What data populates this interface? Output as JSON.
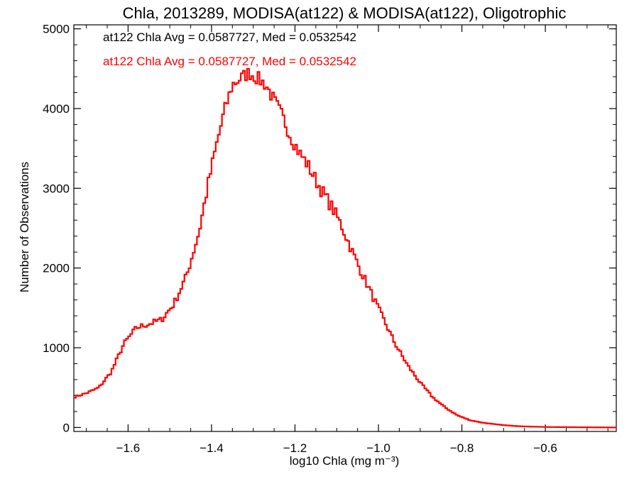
{
  "chart_data": {
    "type": "line",
    "step": true,
    "title": "Chla, 2013289, MODISA(at122) & MODISA(at122), Oligotrophic",
    "xlabel": "log10 Chla (mg m⁻³)",
    "ylabel": "Number of Observations",
    "xlim": [
      -1.73,
      -0.43
    ],
    "ylim": [
      -50,
      5050
    ],
    "xticks": [
      -1.6,
      -1.4,
      -1.2,
      -1.0,
      -0.8,
      -0.6
    ],
    "xtick_labels": [
      "−1.6",
      "−1.4",
      "−1.2",
      "−1.0",
      "−0.8",
      "−0.6"
    ],
    "yticks": [
      0,
      1000,
      2000,
      3000,
      4000,
      5000
    ],
    "ytick_labels": [
      "0",
      "1000",
      "2000",
      "3000",
      "4000",
      "5000"
    ],
    "grid": false,
    "annotations": [
      {
        "text": "at122 Chla Avg = 0.0587727, Med = 0.0532542",
        "color": "#000000"
      },
      {
        "text": "at122 Chla Avg = 0.0587727, Med = 0.0532542",
        "color": "#ff0000"
      }
    ],
    "series": [
      {
        "color": "#ff0000",
        "x": [
          -1.73,
          -1.7,
          -1.67,
          -1.64,
          -1.61,
          -1.58,
          -1.55,
          -1.52,
          -1.49,
          -1.46,
          -1.43,
          -1.41,
          -1.39,
          -1.37,
          -1.35,
          -1.33,
          -1.31,
          -1.29,
          -1.27,
          -1.25,
          -1.23,
          -1.21,
          -1.19,
          -1.17,
          -1.15,
          -1.13,
          -1.11,
          -1.09,
          -1.07,
          -1.05,
          -1.03,
          -1.01,
          -0.99,
          -0.96,
          -0.93,
          -0.9,
          -0.87,
          -0.84,
          -0.81,
          -0.78,
          -0.75,
          -0.72,
          -0.69,
          -0.66,
          -0.63,
          -0.6,
          -0.55,
          -0.5,
          -0.43
        ],
        "y": [
          380,
          430,
          500,
          700,
          1050,
          1250,
          1300,
          1350,
          1550,
          1900,
          2450,
          3000,
          3500,
          3950,
          4300,
          4380,
          4450,
          4380,
          4300,
          4100,
          3900,
          3650,
          3450,
          3300,
          3100,
          2920,
          2750,
          2550,
          2300,
          2050,
          1830,
          1600,
          1380,
          1050,
          780,
          560,
          380,
          250,
          150,
          90,
          60,
          40,
          25,
          15,
          10,
          6,
          4,
          2,
          0
        ]
      }
    ]
  }
}
